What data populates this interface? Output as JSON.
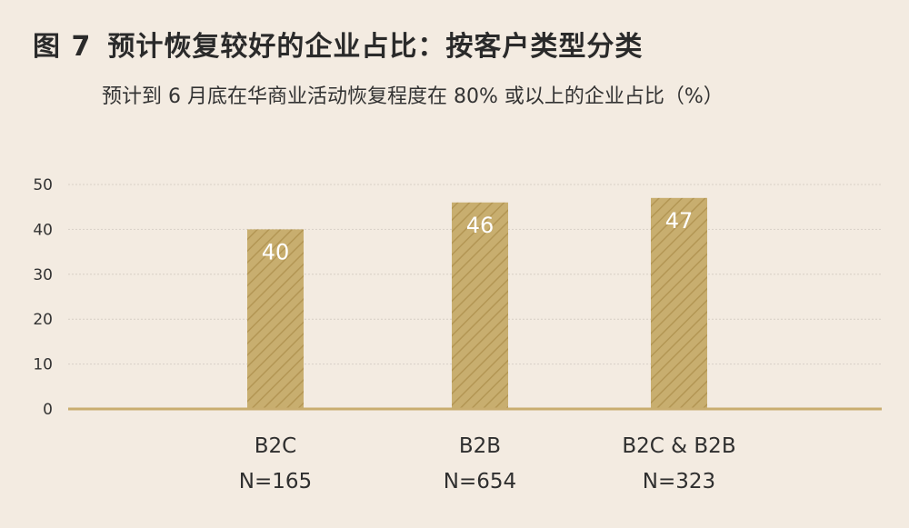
{
  "header": {
    "figure_number": "图 7",
    "title": "预计恢复较好的企业占比：按客户类型分类",
    "subtitle": "预计到 6 月底在华商业活动恢复程度在 80% 或以上的企业占比（%）"
  },
  "chart_data": {
    "type": "bar",
    "title": "预计恢复较好的企业占比：按客户类型分类",
    "subtitle": "预计到 6 月底在华商业活动恢复程度在 80% 或以上的企业占比（%）",
    "categories": [
      "B2C",
      "B2B",
      "B2C & B2B"
    ],
    "category_samples": [
      "N=165",
      "N=654",
      "N=323"
    ],
    "values": [
      40,
      46,
      47
    ],
    "value_labels": [
      "40",
      "46",
      "47"
    ],
    "ylim": [
      0,
      50
    ],
    "yticks": [
      0,
      10,
      20,
      30,
      40,
      50
    ],
    "ytick_labels": [
      "0",
      "10",
      "20",
      "30",
      "40",
      "50"
    ],
    "grid": true,
    "legend": "none",
    "colors": {
      "bar": "#c8ae6f",
      "bar_hatch": "#b39654",
      "axis": "#c9ad6f",
      "grid": "#d8d0c6",
      "background": "#f3ebe1"
    }
  }
}
